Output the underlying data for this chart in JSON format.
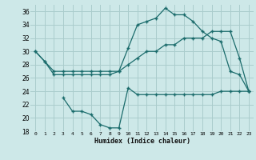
{
  "xlabel": "Humidex (Indice chaleur)",
  "bg_color": "#cde8e8",
  "grid_color": "#aacccc",
  "line_color": "#1a6b6b",
  "xlim": [
    -0.5,
    23.5
  ],
  "ylim": [
    18,
    37
  ],
  "yticks": [
    18,
    20,
    22,
    24,
    26,
    28,
    30,
    32,
    34,
    36
  ],
  "xticks": [
    0,
    1,
    2,
    3,
    4,
    5,
    6,
    7,
    8,
    9,
    10,
    11,
    12,
    13,
    14,
    15,
    16,
    17,
    18,
    19,
    20,
    21,
    22,
    23
  ],
  "line1_x": [
    0,
    1,
    2,
    3,
    4,
    5,
    6,
    7,
    8,
    9,
    10,
    11,
    12,
    13,
    14,
    15,
    16,
    17,
    18,
    19,
    20,
    21,
    22,
    23
  ],
  "line1_y": [
    30,
    28.5,
    27,
    27,
    27,
    27,
    27,
    27,
    27,
    27,
    28,
    29,
    30,
    30,
    31,
    31,
    32,
    32,
    32,
    33,
    33,
    33,
    29,
    24
  ],
  "line2_x": [
    0,
    1,
    2,
    3,
    4,
    5,
    6,
    7,
    8,
    9,
    10,
    11,
    12,
    13,
    14,
    15,
    16,
    17,
    18,
    19,
    20,
    21,
    22,
    23
  ],
  "line2_y": [
    30,
    28.5,
    26.5,
    26.5,
    26.5,
    26.5,
    26.5,
    26.5,
    26.5,
    27,
    30.5,
    34,
    34.5,
    35,
    36.5,
    35.5,
    35.5,
    34.5,
    33,
    32,
    31.5,
    27,
    26.5,
    24
  ],
  "line3_x": [
    3,
    4,
    5,
    6,
    7,
    8,
    9,
    10,
    11,
    12,
    13,
    14,
    15,
    16,
    17,
    18,
    19,
    20,
    21,
    22,
    23
  ],
  "line3_y": [
    23,
    21,
    21,
    20.5,
    19,
    18.5,
    18.5,
    24.5,
    23.5,
    23.5,
    23.5,
    23.5,
    23.5,
    23.5,
    23.5,
    23.5,
    23.5,
    24,
    24,
    24,
    24
  ]
}
